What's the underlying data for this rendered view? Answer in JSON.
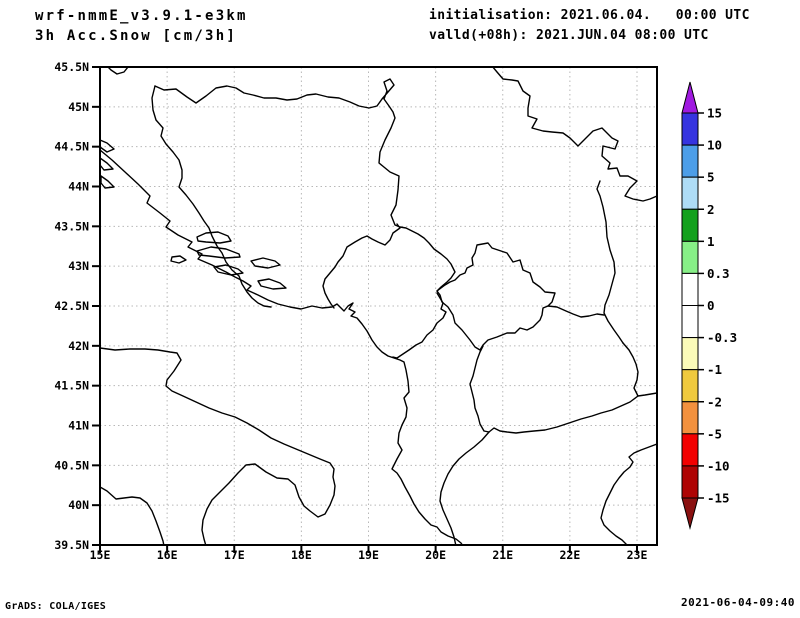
{
  "header": {
    "model": "wrf-nmmE_v3.9.1-e3km",
    "field": "3h Acc.Snow [cm/3h]",
    "init_label": "initialisation: 2021.06.04.   00:00 UTC",
    "valid_label": "valld(+08h): 2021.JUN.04 08:00 UTC"
  },
  "footer": {
    "left": "GrADS: COLA/IGES",
    "right": "2021-06-04-09:40"
  },
  "axes": {
    "lat_ticks": [
      "45.5N",
      "45N",
      "44.5N",
      "44N",
      "43.5N",
      "43N",
      "42.5N",
      "42N",
      "41.5N",
      "41N",
      "40.5N",
      "40N",
      "39.5N"
    ],
    "lon_ticks": [
      "15E",
      "16E",
      "17E",
      "18E",
      "19E",
      "20E",
      "21E",
      "22E",
      "23E"
    ]
  },
  "colorbar": {
    "labels": [
      "15",
      "10",
      "5",
      "2",
      "1",
      "0.3",
      "0",
      "-0.3",
      "-1",
      "-2",
      "-5",
      "-10",
      "-15"
    ],
    "segments": [
      {
        "from": 10,
        "to": 15,
        "color": "#3634e0"
      },
      {
        "from": 5,
        "to": 10,
        "color": "#4d9ee8"
      },
      {
        "from": 2,
        "to": 5,
        "color": "#aedcf6"
      },
      {
        "from": 1,
        "to": 2,
        "color": "#12a01c"
      },
      {
        "from": 0.3,
        "to": 1,
        "color": "#87ef87"
      },
      {
        "from": 0,
        "to": 0.3,
        "color": "#ffffff"
      },
      {
        "from": -0.3,
        "to": 0,
        "color": "#ffffff"
      },
      {
        "from": -1,
        "to": -0.3,
        "color": "#fbfbb9"
      },
      {
        "from": -2,
        "to": -1,
        "color": "#efc93e"
      },
      {
        "from": -5,
        "to": -2,
        "color": "#f3913e"
      },
      {
        "from": -10,
        "to": -5,
        "color": "#f20000"
      },
      {
        "from": -15,
        "to": -10,
        "color": "#ae0404"
      }
    ],
    "arrow_top_color": "#a01ae0",
    "arrow_bottom_color": "#8a1111"
  },
  "chart_data": {
    "type": "map-contour",
    "title": "wrf-nmmE_v3.9.1-e3km  3h Acc.Snow [cm/3h]",
    "initialisation": "2021.06.04. 00:00 UTC",
    "valid": "+08h, 2021.JUN.04 08:00 UTC",
    "units": "cm/3h",
    "lon_range_deg_E": [
      15,
      23.3
    ],
    "lat_range_deg_N": [
      39.5,
      45.5
    ],
    "grid": {
      "lon_step_deg": 1,
      "lat_step_deg": 0.5,
      "style": "dotted gray"
    },
    "colorbar_levels": [
      -15,
      -10,
      -5,
      -2,
      -1,
      -0.3,
      0,
      0.3,
      1,
      2,
      5,
      10,
      15
    ],
    "field_values": "no shaded snow accumulation anywhere in the domain (field is zero; only coastlines and country borders are drawn)",
    "map_region": "Adriatic / Balkans: Italian Apulia coast, Dalmatian coast and islands, Bosnia, Serbia, Montenegro, Kosovo, Albania, North Macedonia, northern Greece",
    "legend_position": "right vertical colorbar with end arrows"
  }
}
